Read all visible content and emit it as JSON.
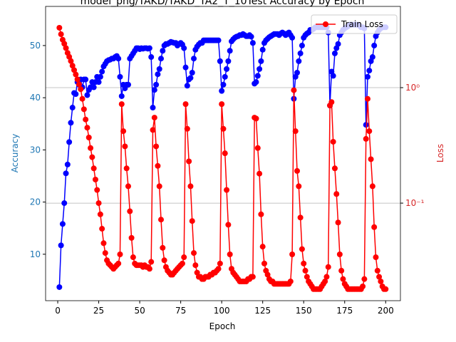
{
  "chart_data": {
    "type": "line",
    "title": "model_png/TAKD/TAKD_TA2_T_10Test Accuracy by Epoch",
    "xlabel": "Epoch",
    "ylabel": "Accuracy",
    "y2label": "Loss",
    "xlim": [
      -7.4,
      209
    ],
    "xticks": [
      0,
      25,
      50,
      75,
      100,
      125,
      150,
      175,
      200
    ],
    "ylim": [
      1.1,
      57.5
    ],
    "yticks": [
      10,
      20,
      30,
      40,
      50
    ],
    "y2lim": [
      0.0143,
      5.05
    ],
    "y2scale": "log",
    "y2ticks": [
      {
        "value": 0.1,
        "label": "10⁻¹"
      },
      {
        "value": 1,
        "label": "10⁰"
      }
    ],
    "grid": "y2",
    "legend": "upper right",
    "x": [
      1,
      2,
      3,
      4,
      5,
      6,
      7,
      8,
      9,
      10,
      11,
      12,
      13,
      14,
      15,
      16,
      17,
      18,
      19,
      20,
      21,
      22,
      23,
      24,
      25,
      26,
      27,
      28,
      29,
      30,
      31,
      32,
      33,
      34,
      35,
      36,
      37,
      38,
      39,
      40,
      41,
      42,
      43,
      44,
      45,
      46,
      47,
      48,
      49,
      50,
      51,
      52,
      53,
      54,
      55,
      56,
      57,
      58,
      59,
      60,
      61,
      62,
      63,
      64,
      65,
      66,
      67,
      68,
      69,
      70,
      71,
      72,
      73,
      74,
      75,
      76,
      77,
      78,
      79,
      80,
      81,
      82,
      83,
      84,
      85,
      86,
      87,
      88,
      89,
      90,
      91,
      92,
      93,
      94,
      95,
      96,
      97,
      98,
      99,
      100,
      101,
      102,
      103,
      104,
      105,
      106,
      107,
      108,
      109,
      110,
      111,
      112,
      113,
      114,
      115,
      116,
      117,
      118,
      119,
      120,
      121,
      122,
      123,
      124,
      125,
      126,
      127,
      128,
      129,
      130,
      131,
      132,
      133,
      134,
      135,
      136,
      137,
      138,
      139,
      140,
      141,
      142,
      143,
      144,
      145,
      146,
      147,
      148,
      149,
      150,
      151,
      152,
      153,
      154,
      155,
      156,
      157,
      158,
      159,
      160,
      161,
      162,
      163,
      164,
      165,
      166,
      167,
      168,
      169,
      170,
      171,
      172,
      173,
      174,
      175,
      176,
      177,
      178,
      179,
      180,
      181,
      182,
      183,
      184,
      185,
      186,
      187,
      188,
      189,
      190,
      191,
      192,
      193,
      194,
      195,
      196,
      197,
      198,
      199,
      200
    ],
    "series": [
      {
        "color": "#0000ff",
        "axis": "y",
        "values": [
          3.7,
          11.7,
          15.8,
          19.8,
          25.5,
          27.2,
          31.5,
          35.2,
          38.1,
          40.9,
          40.7,
          43.0,
          42.5,
          43.5,
          42.0,
          43.5,
          43.5,
          40.5,
          41.5,
          42.0,
          43.0,
          42.0,
          43.0,
          44.0,
          43.0,
          44.0,
          45.0,
          46.0,
          46.5,
          47.0,
          47.2,
          47.3,
          47.5,
          47.5,
          47.8,
          48.0,
          47.5,
          44.0,
          40.3,
          42.5,
          41.8,
          42.5,
          42.5,
          47.5,
          48.0,
          48.5,
          49.0,
          49.5,
          49.5,
          49.3,
          49.5,
          49.4,
          49.5,
          49.5,
          49.4,
          49.5,
          47.8,
          38.1,
          41.5,
          42.5,
          44.5,
          45.5,
          47.5,
          49.0,
          50.0,
          50.3,
          50.3,
          50.5,
          50.7,
          50.6,
          50.5,
          50.5,
          50.0,
          50.3,
          50.5,
          50.2,
          49.5,
          45.8,
          42.3,
          43.5,
          43.8,
          44.8,
          47.5,
          49.2,
          49.8,
          50.2,
          50.5,
          50.5,
          51.0,
          51.0,
          51.0,
          51.0,
          51.0,
          51.0,
          51.0,
          51.0,
          51.0,
          51.0,
          47.0,
          41.3,
          42.5,
          44.0,
          45.5,
          47.0,
          49.0,
          50.8,
          51.2,
          51.5,
          51.7,
          51.8,
          52.0,
          52.0,
          52.2,
          52.0,
          51.8,
          51.8,
          52.0,
          51.7,
          50.5,
          42.7,
          43.0,
          44.2,
          45.5,
          47.0,
          49.2,
          50.5,
          51.0,
          51.3,
          51.6,
          51.8,
          52.0,
          52.2,
          52.2,
          52.2,
          52.0,
          52.3,
          52.5,
          52.3,
          52.0,
          52.3,
          52.5,
          52.0,
          51.5,
          39.8,
          44.0,
          44.8,
          47.0,
          48.5,
          50.0,
          51.5,
          52.0,
          52.3,
          52.5,
          53.0,
          53.0,
          53.2,
          53.5,
          53.5,
          53.5,
          53.5,
          53.5,
          53.5,
          53.5,
          53.5,
          52.5,
          38.5,
          45.0,
          44.2,
          48.5,
          49.5,
          50.3,
          52.0,
          52.5,
          53.0,
          53.3,
          53.5,
          53.7,
          54.0,
          54.0,
          54.0,
          54.0,
          54.0,
          54.0,
          53.8,
          53.5,
          53.5,
          53.3,
          34.8,
          44.0,
          45.2,
          47.0,
          47.8,
          50.0,
          51.8,
          52.5,
          53.0,
          53.3,
          53.5,
          53.5,
          53.5
        ]
      },
      {
        "name": "Train Loss",
        "color": "#ff0000",
        "axis": "y2",
        "values": [
          3.3,
          2.9,
          2.6,
          2.4,
          2.2,
          2.0,
          1.85,
          1.7,
          1.55,
          1.42,
          1.3,
          1.18,
          1.07,
          0.97,
          0.8,
          0.65,
          0.53,
          0.45,
          0.37,
          0.3,
          0.25,
          0.2,
          0.16,
          0.13,
          0.1,
          0.08,
          0.06,
          0.045,
          0.037,
          0.032,
          0.03,
          0.029,
          0.028,
          0.027,
          0.028,
          0.029,
          0.03,
          0.036,
          0.72,
          0.42,
          0.31,
          0.2,
          0.14,
          0.085,
          0.05,
          0.034,
          0.03,
          0.029,
          0.029,
          0.029,
          0.029,
          0.028,
          0.029,
          0.028,
          0.028,
          0.027,
          0.031,
          0.43,
          0.55,
          0.31,
          0.21,
          0.14,
          0.072,
          0.041,
          0.032,
          0.028,
          0.026,
          0.025,
          0.024,
          0.024,
          0.025,
          0.026,
          0.027,
          0.028,
          0.029,
          0.03,
          0.034,
          0.72,
          0.44,
          0.23,
          0.14,
          0.07,
          0.037,
          0.029,
          0.025,
          0.023,
          0.023,
          0.022,
          0.022,
          0.023,
          0.023,
          0.023,
          0.024,
          0.024,
          0.025,
          0.025,
          0.026,
          0.027,
          0.03,
          0.72,
          0.44,
          0.27,
          0.13,
          0.065,
          0.036,
          0.027,
          0.025,
          0.024,
          0.023,
          0.022,
          0.021,
          0.021,
          0.021,
          0.021,
          0.021,
          0.022,
          0.022,
          0.023,
          0.023,
          0.55,
          0.54,
          0.3,
          0.18,
          0.08,
          0.042,
          0.03,
          0.026,
          0.024,
          0.022,
          0.021,
          0.021,
          0.02,
          0.02,
          0.02,
          0.02,
          0.02,
          0.02,
          0.02,
          0.02,
          0.02,
          0.02,
          0.021,
          0.036,
          0.95,
          0.42,
          0.19,
          0.14,
          0.075,
          0.04,
          0.03,
          0.026,
          0.023,
          0.021,
          0.02,
          0.019,
          0.018,
          0.018,
          0.018,
          0.018,
          0.018,
          0.019,
          0.02,
          0.021,
          0.023,
          0.028,
          0.7,
          0.75,
          0.34,
          0.2,
          0.12,
          0.068,
          0.036,
          0.026,
          0.022,
          0.02,
          0.019,
          0.018,
          0.018,
          0.018,
          0.018,
          0.018,
          0.018,
          0.018,
          0.018,
          0.018,
          0.019,
          0.022,
          0.36,
          0.8,
          0.42,
          0.24,
          0.14,
          0.062,
          0.034,
          0.026,
          0.023,
          0.021,
          0.019,
          0.018,
          0.018
        ]
      }
    ]
  }
}
